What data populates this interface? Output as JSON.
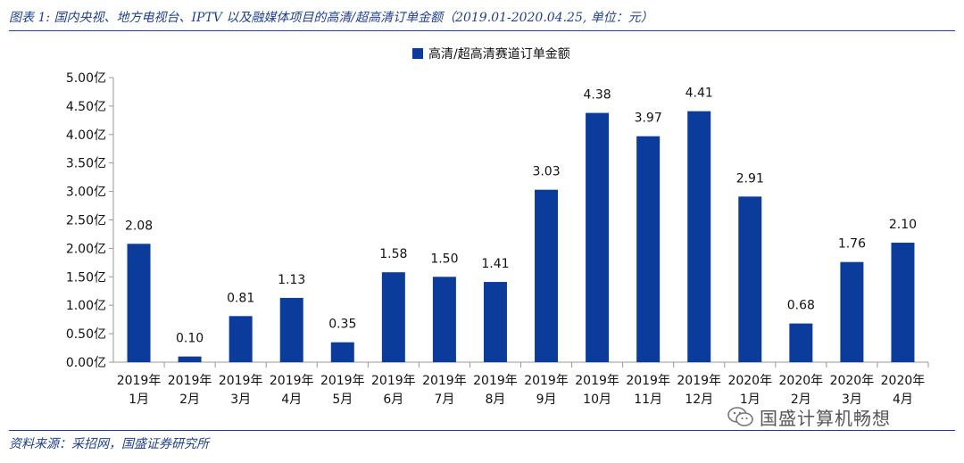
{
  "caption": "图表 1: 国内央视、地方电视台、IPTV 以及融媒体项目的高清/超高清订单金额（2019.01-2020.04.25, 单位：元）",
  "source": "资料来源：采招网，国盛证券研究所",
  "watermark": "国盛计算机畅想",
  "colors": {
    "bar": "#0c3c9b",
    "caption": "#1f3f8f",
    "axis": "#999999"
  },
  "chart_data": {
    "type": "bar",
    "categories": [
      [
        "2019年",
        "1月"
      ],
      [
        "2019年",
        "2月"
      ],
      [
        "2019年",
        "3月"
      ],
      [
        "2019年",
        "4月"
      ],
      [
        "2019年",
        "5月"
      ],
      [
        "2019年",
        "6月"
      ],
      [
        "2019年",
        "7月"
      ],
      [
        "2019年",
        "8月"
      ],
      [
        "2019年",
        "9月"
      ],
      [
        "2019年",
        "10月"
      ],
      [
        "2019年",
        "11月"
      ],
      [
        "2019年",
        "12月"
      ],
      [
        "2020年",
        "1月"
      ],
      [
        "2020年",
        "2月"
      ],
      [
        "2020年",
        "3月"
      ],
      [
        "2020年",
        "4月"
      ]
    ],
    "series": [
      {
        "name": "高清/超高清赛道订单金额",
        "values": [
          2.08,
          0.1,
          0.81,
          1.13,
          0.35,
          1.58,
          1.5,
          1.41,
          3.03,
          4.38,
          3.97,
          4.41,
          2.91,
          0.68,
          1.76,
          2.1
        ],
        "labels": [
          "2.08",
          "0.10",
          "0.81",
          "1.13",
          "0.35",
          "1.58",
          "1.50",
          "1.41",
          "3.03",
          "4.38",
          "3.97",
          "4.41",
          "2.91",
          "0.68",
          "1.76",
          "2.10"
        ]
      }
    ],
    "yticks": [
      "0.00亿",
      "0.50亿",
      "1.00亿",
      "1.50亿",
      "2.00亿",
      "2.50亿",
      "3.00亿",
      "3.50亿",
      "4.00亿",
      "4.50亿",
      "5.00亿"
    ],
    "ylim": [
      0,
      5
    ],
    "grid": false,
    "legend_position": "top-center"
  }
}
